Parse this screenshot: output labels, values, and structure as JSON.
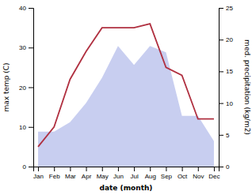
{
  "chart_data": {
    "type": "line",
    "xlabel": "date (month)",
    "ylabel": "max temp (C)",
    "y2label": "med. precipitation (kg/m2)",
    "categories": [
      "Jan",
      "Feb",
      "Mar",
      "Apr",
      "May",
      "Jun",
      "Jul",
      "Aug",
      "Sep",
      "Oct",
      "Nov",
      "Dec"
    ],
    "series": [
      {
        "type": "area",
        "axis": "y2",
        "color": "#aab4e8",
        "values": [
          5.5,
          5.5,
          7,
          10,
          14,
          19,
          16,
          19,
          18,
          8,
          8,
          4
        ]
      },
      {
        "type": "line",
        "color": "#b03040",
        "values": [
          5,
          10,
          22,
          29,
          35,
          35,
          35,
          36,
          25,
          23,
          12,
          12
        ]
      }
    ],
    "ylim": [
      0,
      40
    ],
    "yticks": [
      0,
      10,
      20,
      30,
      40
    ],
    "y2lim": [
      0,
      25
    ],
    "y2ticks": [
      0,
      5,
      10,
      15,
      20,
      25
    ],
    "grid": false
  }
}
